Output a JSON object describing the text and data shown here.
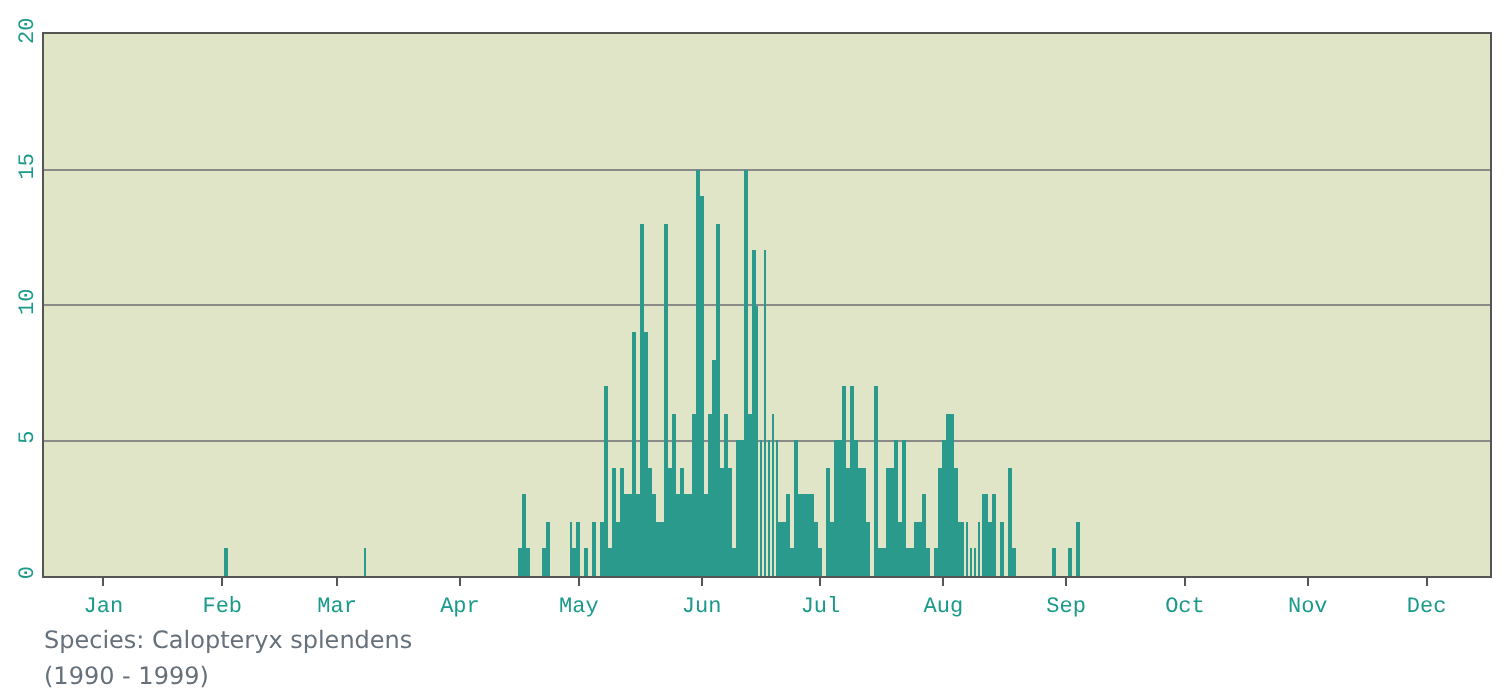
{
  "chart_data": {
    "type": "bar",
    "color": "#2a9a8c",
    "x": [
      "--02-16",
      "--03-23",
      "--05-01",
      "--05-02",
      "--05-03",
      "--05-07",
      "--05-08",
      "--05-14",
      "--05-15",
      "--05-16",
      "--05-18",
      "--05-20",
      "--05-22",
      "--05-23",
      "--05-24",
      "--05-25",
      "--05-26",
      "--05-27",
      "--05-28",
      "--05-29",
      "--05-30",
      "--05-31",
      "--06-01",
      "--06-02",
      "--06-03",
      "--06-04",
      "--06-05",
      "--06-06",
      "--06-07",
      "--06-08",
      "--06-09",
      "--06-10",
      "--06-11",
      "--06-12",
      "--06-13",
      "--06-14",
      "--06-15",
      "--06-16",
      "--06-17",
      "--06-18",
      "--06-19",
      "--06-20",
      "--06-21",
      "--06-22",
      "--06-23",
      "--06-24",
      "--06-25",
      "--06-26",
      "--06-27",
      "--06-28",
      "--06-29",
      "--06-30",
      "--07-01",
      "--07-02",
      "--07-03",
      "--07-04",
      "--07-05",
      "--07-06",
      "--07-07",
      "--07-08",
      "--07-09",
      "--07-10",
      "--07-11",
      "--07-12",
      "--07-13",
      "--07-14",
      "--07-15",
      "--07-16",
      "--07-18",
      "--07-19",
      "--07-20",
      "--07-21",
      "--07-22",
      "--07-23",
      "--07-24",
      "--07-25",
      "--07-26",
      "--07-27",
      "--07-28",
      "--07-30",
      "--07-31",
      "--08-01",
      "--08-02",
      "--08-03",
      "--08-04",
      "--08-05",
      "--08-06",
      "--08-07",
      "--08-08",
      "--08-09",
      "--08-10",
      "--08-11",
      "--08-12",
      "--08-14",
      "--08-15",
      "--08-16",
      "--08-17",
      "--08-18",
      "--08-19",
      "--08-20",
      "--08-21",
      "--08-22",
      "--08-23",
      "--08-24",
      "--08-25",
      "--08-26",
      "--08-27",
      "--08-28",
      "--08-29",
      "--08-31",
      "--09-02",
      "--09-03",
      "--09-13",
      "--09-17",
      "--09-19"
    ],
    "values": [
      1,
      1,
      1,
      3,
      1,
      1,
      2,
      2,
      1,
      2,
      1,
      2,
      2,
      7,
      1,
      4,
      2,
      4,
      3,
      3,
      9,
      3,
      13,
      9,
      4,
      3,
      2,
      2,
      13,
      4,
      6,
      3,
      4,
      3,
      3,
      6,
      15,
      14,
      3,
      6,
      8,
      13,
      4,
      6,
      4,
      1,
      5,
      5,
      15,
      6,
      12,
      10,
      5,
      12,
      5,
      6,
      5,
      2,
      2,
      3,
      1,
      5,
      3,
      3,
      3,
      3,
      2,
      1,
      4,
      2,
      5,
      5,
      7,
      4,
      7,
      5,
      4,
      4,
      2,
      7,
      1,
      1,
      4,
      4,
      5,
      2,
      5,
      1,
      1,
      2,
      2,
      3,
      1,
      1,
      4,
      5,
      6,
      6,
      4,
      2,
      2,
      2,
      1,
      1,
      2,
      3,
      3,
      2,
      3,
      2,
      4,
      1,
      1,
      1,
      2
    ],
    "xlim": [
      "--01-01",
      "--12-31"
    ],
    "xticks": [
      {
        "value": "--01-16",
        "label": "Jan"
      },
      {
        "value": "--02-15",
        "label": "Feb"
      },
      {
        "value": "--03-16",
        "label": "Mar"
      },
      {
        "value": "--04-16",
        "label": "Apr"
      },
      {
        "value": "--05-16",
        "label": "May"
      },
      {
        "value": "--06-16",
        "label": "Jun"
      },
      {
        "value": "--07-16",
        "label": "Jul"
      },
      {
        "value": "--08-16",
        "label": "Aug"
      },
      {
        "value": "--09-16",
        "label": "Sep"
      },
      {
        "value": "--10-16",
        "label": "Oct"
      },
      {
        "value": "--11-16",
        "label": "Nov"
      },
      {
        "value": "--12-16",
        "label": "Dec"
      }
    ],
    "ylim": [
      0,
      20
    ],
    "yticks": [
      0,
      5,
      10,
      15,
      20
    ],
    "grid": "y",
    "annotations": [
      "Species: Calopteryx splendens",
      "(1990 - 1999)"
    ]
  }
}
